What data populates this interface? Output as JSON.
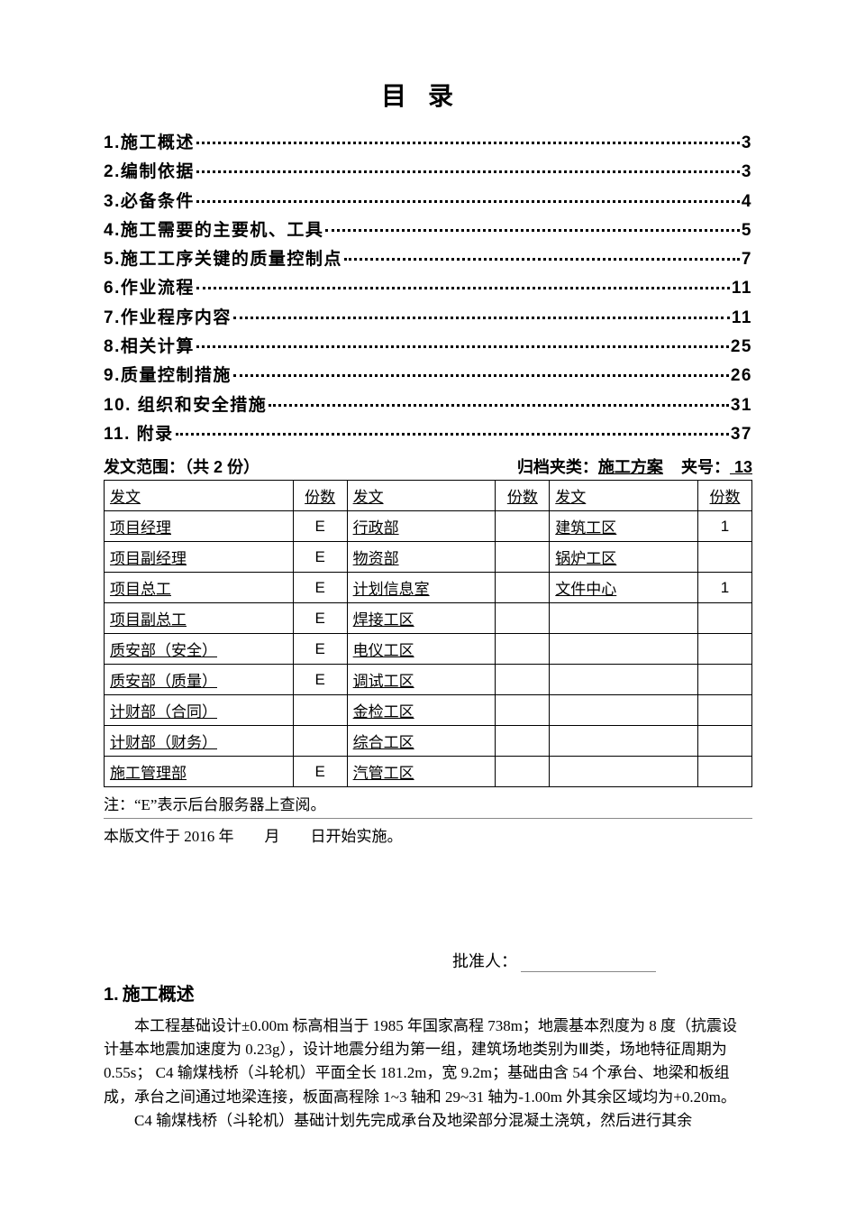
{
  "title": "目录",
  "toc": [
    {
      "label": "1.施工概述",
      "page": "3"
    },
    {
      "label": "2.编制依据",
      "page": "3"
    },
    {
      "label": "3.必备条件",
      "page": "4"
    },
    {
      "label": "4.施工需要的主要机、工具",
      "page": "5"
    },
    {
      "label": "5.施工工序关键的质量控制点",
      "page": "7"
    },
    {
      "label": "6.作业流程",
      "page": "11"
    },
    {
      "label": "7.作业程序内容",
      "page": "11"
    },
    {
      "label": "8.相关计算",
      "page": "25"
    },
    {
      "label": "9.质量控制措施",
      "page": "26"
    },
    {
      "label": "10. 组织和安全措施",
      "page": "31"
    },
    {
      "label": "11. 附录",
      "page": "37"
    }
  ],
  "distribution": {
    "scope_label": "发文范围：（共 2 份）",
    "archive_label": "归档夹类：",
    "archive_value": "施工方案",
    "folder_label": "夹号：",
    "folder_value": " 13",
    "headers": [
      "发文",
      "份数",
      "发文",
      "份数",
      "发文",
      "份数"
    ],
    "rows": [
      [
        "项目经理",
        "E",
        "行政部",
        "",
        "建筑工区",
        "1"
      ],
      [
        "项目副经理",
        "E",
        "物资部",
        "",
        "锅炉工区",
        ""
      ],
      [
        "项目总工",
        "E",
        "计划信息室",
        "",
        "文件中心",
        "1"
      ],
      [
        "项目副总工",
        "E",
        "焊接工区",
        "",
        "",
        ""
      ],
      [
        "质安部（安全）",
        "E",
        "电仪工区",
        "",
        "",
        ""
      ],
      [
        "质安部（质量）",
        "E",
        "调试工区",
        "",
        "",
        ""
      ],
      [
        "计财部（合同）",
        "",
        "金检工区",
        "",
        "",
        ""
      ],
      [
        "计财部（财务）",
        "",
        "综合工区",
        "",
        "",
        ""
      ],
      [
        "施工管理部",
        "E",
        "汽管工区",
        "",
        "",
        ""
      ]
    ]
  },
  "note1": "注：“E”表示后台服务器上查阅。",
  "note2": "本版文件于 2016 年  月  日开始实施。",
  "approver_label": "批准人：",
  "section1": {
    "num": "1.",
    "title": "施工概述",
    "p1": "本工程基础设计±0.00m 标高相当于 1985 年国家高程 738m；地震基本烈度为 8 度（抗震设计基本地震加速度为 0.23g），设计地震分组为第一组，建筑场地类别为Ⅲ类，场地特征周期为 0.55s； C4 输煤栈桥（斗轮机）平面全长 181.2m，宽 9.2m；基础由含 54 个承台、地梁和板组成，承台之间通过地梁连接，板面高程除 1~3 轴和 29~31 轴为-1.00m 外其余区域均为+0.20m。",
    "p2": "C4 输煤栈桥（斗轮机）基础计划先完成承台及地梁部分混凝土浇筑，然后进行其余"
  }
}
